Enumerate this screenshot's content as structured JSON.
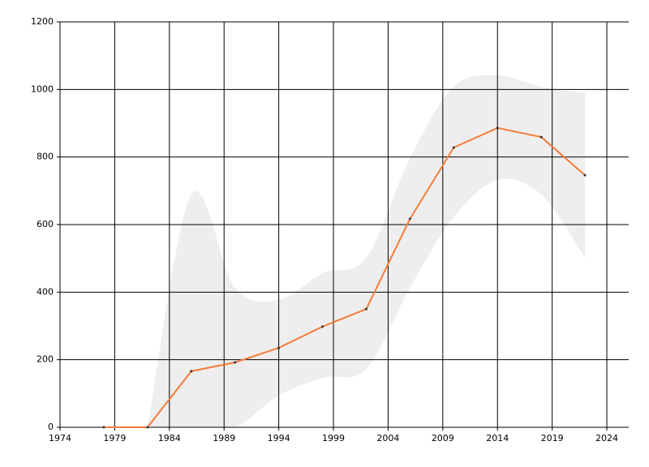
{
  "chart_data": {
    "type": "line",
    "x": [
      1978,
      1982,
      1986,
      1990,
      1994,
      1998,
      2002,
      2006,
      2010,
      2014,
      2018,
      2022
    ],
    "series": [
      {
        "color": "#f57c3a",
        "values": [
          0,
          0,
          166,
          192,
          235,
          298,
          350,
          617,
          828,
          886,
          859,
          746
        ]
      }
    ],
    "band": {
      "color": "#eeeeee",
      "upper": [
        null,
        0,
        689,
        413,
        377,
        456,
        502,
        797,
        1008,
        1042,
        1008,
        989
      ],
      "lower": [
        null,
        0,
        0,
        0,
        94,
        146,
        173,
        413,
        622,
        732,
        689,
        502
      ]
    },
    "xlim": [
      1974,
      2026
    ],
    "xticks": [
      1974,
      1979,
      1984,
      1989,
      1994,
      1999,
      2004,
      2009,
      2014,
      2019,
      2024
    ],
    "ylim": [
      0,
      1200
    ],
    "yticks": [
      0,
      200,
      400,
      600,
      800,
      1000,
      1200
    ],
    "grid": true
  }
}
